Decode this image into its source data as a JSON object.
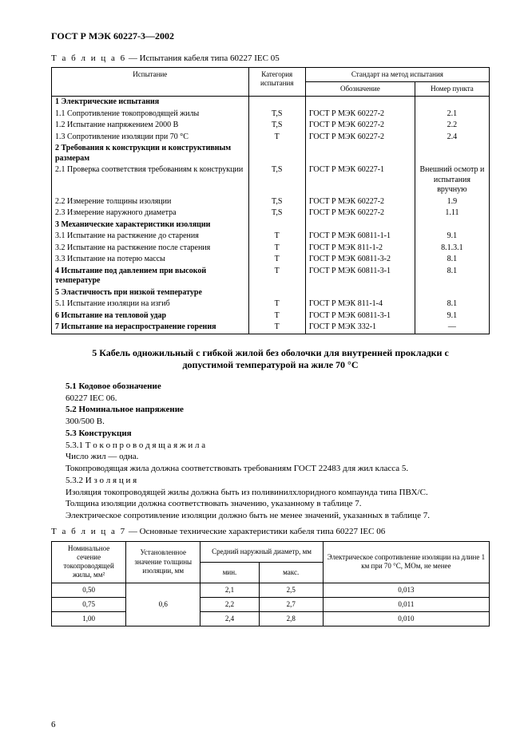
{
  "doc_id": "ГОСТ Р МЭК 60227-3—2002",
  "table6": {
    "caption_prefix": "Т а б л и ц а 6",
    "caption_rest": " — Испытания кабеля типа 60227 IEC 05",
    "head": {
      "test": "Испытание",
      "cat": "Категория испытания",
      "std_group": "Стандарт на метод испытания",
      "std_design": "Обозначение",
      "std_point": "Номер пункта"
    },
    "rows": [
      {
        "t": "1 Электрические испытания",
        "b": true
      },
      {
        "t": "1.1 Сопротивление токопроводящей жилы",
        "c": "T,S",
        "s": "ГОСТ Р МЭК 60227-2",
        "p": "2.1"
      },
      {
        "t": "1.2 Испытание напряжением 2000 В",
        "c": "T,S",
        "s": "ГОСТ Р МЭК 60227-2",
        "p": "2.2"
      },
      {
        "t": "1.3 Сопротивление изоляции при 70 °С",
        "c": "T",
        "s": "ГОСТ Р МЭК 60227-2",
        "p": "2.4"
      },
      {
        "t": "2 Требования к конструкции и конструктивным размерам",
        "b": true
      },
      {
        "t": "2.1 Проверка соответствия требованиям к конструкции",
        "c": "T,S",
        "s": "ГОСТ Р МЭК 60227-1",
        "p": "Внешний осмотр и испытания вручную"
      },
      {
        "t": "2.2 Измерение толщины изоляции",
        "c": "T,S",
        "s": "ГОСТ Р МЭК 60227-2",
        "p": "1.9"
      },
      {
        "t": "2.3 Измерение наружного диаметра",
        "c": "T,S",
        "s": "ГОСТ Р МЭК 60227-2",
        "p": "1.11"
      },
      {
        "t": "3 Механические характеристики изоляции",
        "b": true
      },
      {
        "t": "3.1 Испытание на растяжение до старения",
        "c": "T",
        "s": "ГОСТ Р МЭК 60811-1-1",
        "p": "9.1"
      },
      {
        "t": "3.2 Испытание на растяжение после старения",
        "c": "T",
        "s": "ГОСТ Р МЭК 811-1-2",
        "p": "8.1.3.1"
      },
      {
        "t": "3.3 Испытание на потерю массы",
        "c": "T",
        "s": "ГОСТ Р МЭК 60811-3-2",
        "p": "8.1"
      },
      {
        "t": "4 Испытание под давлением при высокой температуре",
        "b": true,
        "c": "T",
        "s": "ГОСТ Р МЭК 60811-3-1",
        "p": "8.1"
      },
      {
        "t": "5 Эластичность при низкой температуре",
        "b": true
      },
      {
        "t": "5.1 Испытание изоляции на изгиб",
        "c": "T",
        "s": "ГОСТ Р МЭК 811-1-4",
        "p": "8.1"
      },
      {
        "t": "6 Испытание на тепловой удар",
        "b": true,
        "c": "T",
        "s": "ГОСТ Р МЭК 60811-3-1",
        "p": "9.1"
      },
      {
        "t": "7 Испытание на нераспространение горения",
        "b": true,
        "c": "T",
        "s": "ГОСТ Р МЭК 332-1",
        "p": "—"
      }
    ]
  },
  "section5": {
    "title": "5  Кабель одножильный с гибкой жилой без оболочки для внутренней прокладки с допустимой температурой на жиле 70 °С",
    "p51_label": "5.1  Кодовое обозначение",
    "p51_val": "60227 IEC 06.",
    "p52_label": "5.2  Номинальное напряжение",
    "p52_val": "300/500 В.",
    "p53_label": "5.3  Конструкция",
    "p531": "5.3.1  Т о к о п р о в о д я щ а я   ж и л а",
    "p531_l1": "Число жил — одна.",
    "p531_l2": "Токопроводящая жила должна соответствовать требованиям ГОСТ 22483 для жил класса 5.",
    "p532": "5.3.2  И з о л я ц и я",
    "p532_l1": "Изоляция токопроводящей жилы должна быть из поливинилхлоридного компаунда типа ПВХ/С.",
    "p532_l2": "Толщина изоляции должна соответствовать значению, указанному в таблице 7.",
    "p532_l3": "Электрическое сопротивление изоляции должно быть не менее значений, указанных в таблице 7."
  },
  "table7": {
    "caption_prefix": "Т а б л и ц а 7",
    "caption_rest": " — Основные технические характеристики кабеля типа 60227 IEC 06",
    "head": {
      "c1": "Номинальное сечение токопроводящей жилы, мм²",
      "c2": "Установленное значение толщины изоляции, мм",
      "c3g": "Средний наружный диаметр, мм",
      "c3a": "мин.",
      "c3b": "макс.",
      "c4": "Электрическое сопротивление изоляции на длине 1 км при 70 °С, МОм, не менее"
    },
    "rows": [
      {
        "a": "0,50",
        "b": "0,6",
        "c": "2,1",
        "d": "2,5",
        "e": "0,013"
      },
      {
        "a": "0,75",
        "c": "2,2",
        "d": "2,7",
        "e": "0,011"
      },
      {
        "a": "1,00",
        "c": "2,4",
        "d": "2,8",
        "e": "0,010"
      }
    ]
  },
  "pagenum": "6"
}
